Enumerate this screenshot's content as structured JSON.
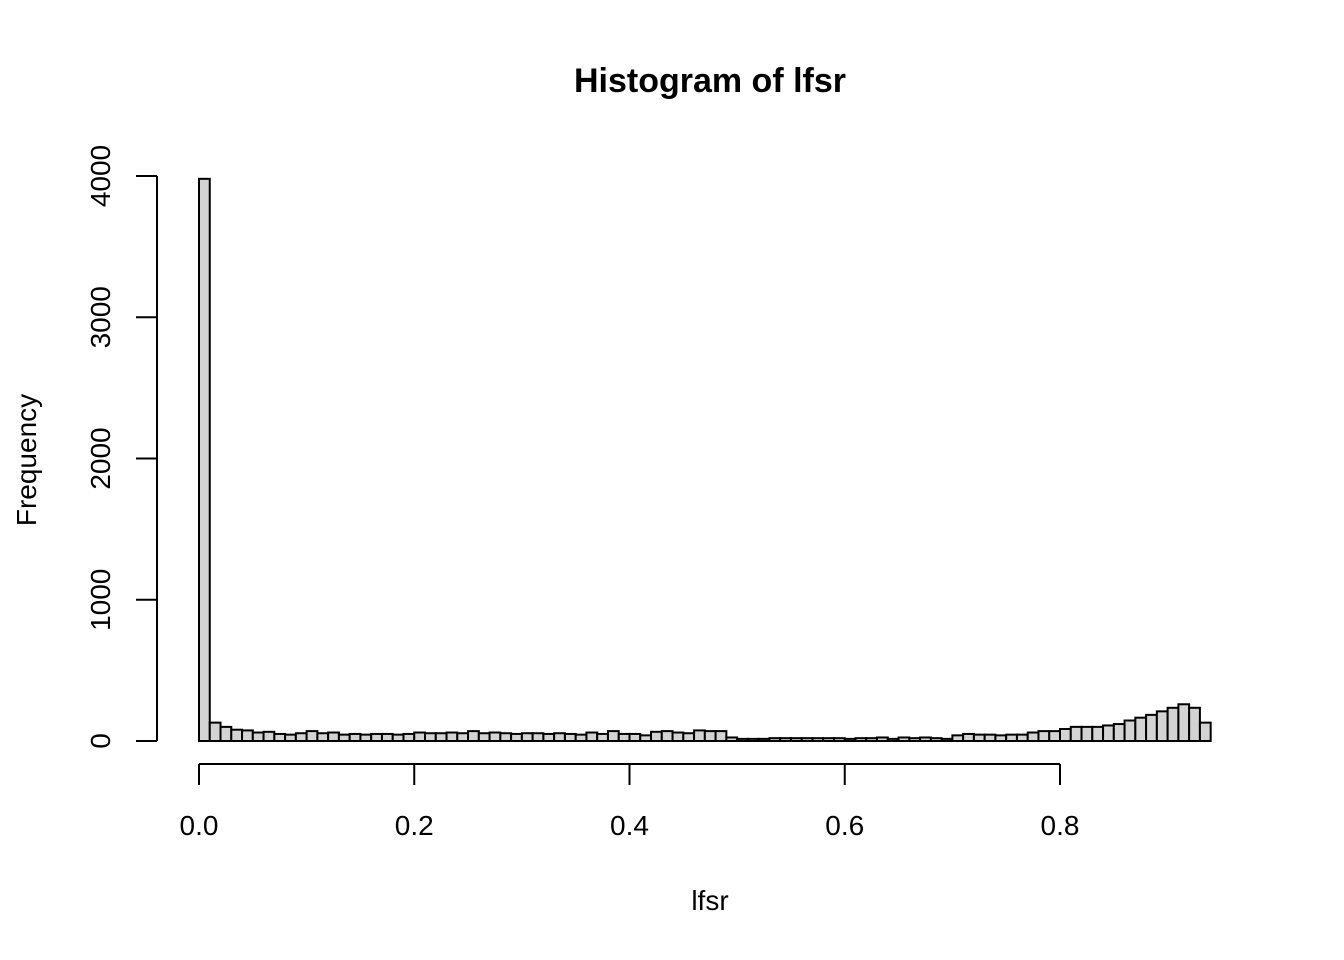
{
  "chart_data": {
    "type": "bar",
    "title": "Histogram of lfsr",
    "xlabel": "lfsr",
    "ylabel": "Frequency",
    "bin_width": 0.01,
    "x": [
      0.0,
      0.01,
      0.02,
      0.03,
      0.04,
      0.05,
      0.06,
      0.07,
      0.08,
      0.09,
      0.1,
      0.11,
      0.12,
      0.13,
      0.14,
      0.15,
      0.16,
      0.17,
      0.18,
      0.19,
      0.2,
      0.21,
      0.22,
      0.23,
      0.24,
      0.25,
      0.26,
      0.27,
      0.28,
      0.29,
      0.3,
      0.31,
      0.32,
      0.33,
      0.34,
      0.35,
      0.36,
      0.37,
      0.38,
      0.39,
      0.4,
      0.41,
      0.42,
      0.43,
      0.44,
      0.45,
      0.46,
      0.47,
      0.48,
      0.49,
      0.5,
      0.51,
      0.52,
      0.53,
      0.54,
      0.55,
      0.56,
      0.57,
      0.58,
      0.59,
      0.6,
      0.61,
      0.62,
      0.63,
      0.64,
      0.65,
      0.66,
      0.67,
      0.68,
      0.69,
      0.7,
      0.71,
      0.72,
      0.73,
      0.74,
      0.75,
      0.76,
      0.77,
      0.78,
      0.79,
      0.8,
      0.81,
      0.82,
      0.83,
      0.84,
      0.85,
      0.86,
      0.87,
      0.88,
      0.89,
      0.9,
      0.91,
      0.92,
      0.93
    ],
    "values": [
      3980,
      130,
      100,
      80,
      75,
      60,
      65,
      50,
      45,
      55,
      70,
      55,
      60,
      45,
      50,
      45,
      50,
      50,
      45,
      50,
      60,
      55,
      55,
      60,
      55,
      70,
      55,
      60,
      55,
      50,
      55,
      55,
      50,
      55,
      50,
      45,
      60,
      50,
      70,
      50,
      50,
      40,
      65,
      70,
      60,
      55,
      75,
      70,
      70,
      25,
      15,
      15,
      15,
      20,
      20,
      20,
      20,
      20,
      20,
      20,
      15,
      20,
      20,
      25,
      15,
      25,
      20,
      25,
      20,
      15,
      40,
      50,
      45,
      45,
      40,
      45,
      45,
      60,
      70,
      70,
      85,
      100,
      100,
      100,
      110,
      120,
      145,
      165,
      185,
      210,
      235,
      260,
      235,
      130
    ],
    "xlim": [
      0,
      0.95
    ],
    "ylim": [
      0,
      4000
    ],
    "x_ticks": [
      "0.0",
      "0.2",
      "0.4",
      "0.6",
      "0.8"
    ],
    "y_ticks": [
      "0",
      "1000",
      "2000",
      "3000",
      "4000"
    ],
    "grid": false
  }
}
